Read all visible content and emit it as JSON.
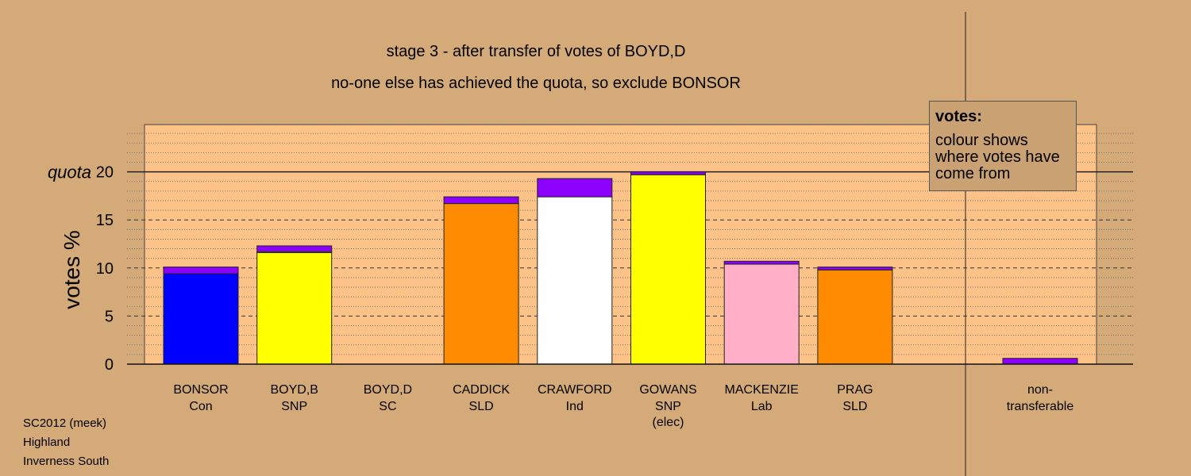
{
  "header": {
    "title_line1": "stage 3 - after transfer of votes of BOYD,D",
    "title_line2": "no-one else has achieved the quota, so exclude BONSOR"
  },
  "legend": {
    "title": "votes:",
    "body": "colour shows where votes have come from"
  },
  "footer": {
    "line1": "SC2012 (meek)",
    "line2": "Highland",
    "line3": "Inverness South"
  },
  "chart_data": {
    "type": "bar",
    "stacked": true,
    "ylabel": "votes %",
    "ylim": [
      0,
      25
    ],
    "yticks": [
      0,
      5,
      10,
      15,
      20
    ],
    "quota": 20,
    "quota_label": "quota",
    "grid": "dashed at major ticks, dotted at minor",
    "legend_position": "top-right",
    "colors": {
      "transfer": "#8b00ff",
      "background_panel": "#fcc287",
      "page": "#d4aa78"
    },
    "categories": [
      {
        "name": "BONSOR",
        "party": "Con",
        "note": "",
        "base": 9.4,
        "transfer": 0.7,
        "color": "#0000ff"
      },
      {
        "name": "BOYD,B",
        "party": "SNP",
        "note": "",
        "base": 11.6,
        "transfer": 0.1,
        "transfer2": 0.6,
        "color": "#ffff00"
      },
      {
        "name": "BOYD,D",
        "party": "SC",
        "note": "",
        "base": 0,
        "transfer": 0,
        "color": "#999999"
      },
      {
        "name": "CADDICK",
        "party": "SLD",
        "note": "",
        "base": 16.7,
        "transfer": 0.7,
        "color": "#ff8c00"
      },
      {
        "name": "CRAWFORD",
        "party": "Ind",
        "note": "",
        "base": 17.4,
        "transfer": 1.9,
        "color": "#ffffff"
      },
      {
        "name": "GOWANS",
        "party": "SNP",
        "note": "(elec)",
        "base": 19.7,
        "transfer": 0.3,
        "color": "#ffff00"
      },
      {
        "name": "MACKENZIE",
        "party": "Lab",
        "note": "",
        "base": 10.4,
        "transfer": 0.3,
        "color": "#ffb0c8"
      },
      {
        "name": "PRAG",
        "party": "SLD",
        "note": "",
        "base": 9.8,
        "transfer": 0.3,
        "color": "#ff8c00"
      }
    ],
    "nontransferable": {
      "label1": "non-",
      "label2": "transferable",
      "value": 0.6
    }
  }
}
